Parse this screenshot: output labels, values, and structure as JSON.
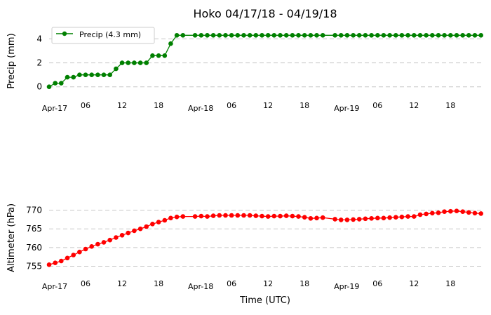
{
  "title": "Hoko 04/17/18 - 04/19/18",
  "chart_data": [
    {
      "type": "line",
      "ylabel": "Precip (mm)",
      "xlabel": "",
      "x_unit": "hours since 2018-04-17 00:00 UTC",
      "xlim": [
        0,
        71.5
      ],
      "ylim": [
        -0.6,
        4.9
      ],
      "yticks": [
        0,
        2,
        4
      ],
      "xticks": [
        {
          "x": 0,
          "label": "Apr-17"
        },
        {
          "x": 6,
          "label": "06"
        },
        {
          "x": 12,
          "label": "12"
        },
        {
          "x": 18,
          "label": "18"
        },
        {
          "x": 24,
          "label": "Apr-18"
        },
        {
          "x": 30,
          "label": "06"
        },
        {
          "x": 36,
          "label": "12"
        },
        {
          "x": 42,
          "label": "18"
        },
        {
          "x": 48,
          "label": "Apr-19"
        },
        {
          "x": 54,
          "label": "06"
        },
        {
          "x": 60,
          "label": "12"
        },
        {
          "x": 66,
          "label": "18"
        }
      ],
      "grid": "horizontal dashed",
      "legend": "upper-left",
      "color": "#008000",
      "series": [
        {
          "name": "Precip (4.3 mm)",
          "x": [
            0,
            1,
            2,
            3,
            4,
            5,
            6,
            7,
            8,
            9,
            10,
            11,
            12,
            13,
            14,
            15,
            16,
            17,
            18,
            19,
            20,
            21,
            22,
            23,
            24,
            25,
            26,
            27,
            28,
            29,
            30,
            31,
            32,
            33,
            34,
            35,
            36,
            37,
            38,
            39,
            40,
            41,
            42,
            43,
            44,
            45,
            46,
            47,
            48,
            49,
            50,
            51,
            52,
            53,
            54,
            55,
            56,
            57,
            58,
            59,
            60,
            61,
            62,
            63,
            64,
            65,
            66,
            67,
            68,
            69,
            70,
            71
          ],
          "values": [
            0,
            0.3,
            0.3,
            0.8,
            0.8,
            1.0,
            1.0,
            1.0,
            1.0,
            1.0,
            1.0,
            1.5,
            2.0,
            2.0,
            2.0,
            2.0,
            2.0,
            2.6,
            2.6,
            2.6,
            3.6,
            4.3,
            4.3,
            4.3,
            4.3,
            4.3,
            4.3,
            4.3,
            4.3,
            4.3,
            4.3,
            4.3,
            4.3,
            4.3,
            4.3,
            4.3,
            4.3,
            4.3,
            4.3,
            4.3,
            4.3,
            4.3,
            4.3,
            4.3,
            4.3,
            4.3,
            4.3,
            4.3,
            4.3,
            4.3,
            4.3,
            4.3,
            4.3,
            4.3,
            4.3,
            4.3,
            4.3,
            4.3,
            4.3,
            4.3,
            4.3,
            4.3,
            4.3,
            4.3,
            4.3,
            4.3,
            4.3,
            4.3,
            4.3,
            4.3,
            4.3,
            4.3
          ],
          "marker_x": [
            0,
            1,
            2,
            3,
            4,
            5,
            6,
            7,
            8,
            9,
            10,
            11,
            12,
            13,
            14,
            15,
            16,
            17,
            18,
            19,
            20,
            21,
            22,
            24,
            25,
            26,
            27,
            28,
            29,
            30,
            31,
            32,
            33,
            34,
            35,
            36,
            37,
            38,
            39,
            40,
            41,
            42,
            43,
            44,
            45,
            47,
            48,
            49,
            50,
            51,
            52,
            53,
            54,
            55,
            56,
            57,
            58,
            59,
            60,
            61,
            62,
            63,
            64,
            65,
            66,
            67,
            68,
            69,
            70,
            71
          ]
        }
      ]
    },
    {
      "type": "line",
      "ylabel": "Altimeter (hPa)",
      "xlabel": "Time (UTC)",
      "x_unit": "hours since 2018-04-17 00:00 UTC",
      "xlim": [
        0,
        71.5
      ],
      "ylim": [
        753.4,
        771.8
      ],
      "yticks": [
        755,
        760,
        765,
        770
      ],
      "xticks": [
        {
          "x": 0,
          "label": "Apr-17"
        },
        {
          "x": 6,
          "label": "06"
        },
        {
          "x": 12,
          "label": "12"
        },
        {
          "x": 18,
          "label": "18"
        },
        {
          "x": 24,
          "label": "Apr-18"
        },
        {
          "x": 30,
          "label": "06"
        },
        {
          "x": 36,
          "label": "12"
        },
        {
          "x": 42,
          "label": "18"
        },
        {
          "x": 48,
          "label": "Apr-19"
        },
        {
          "x": 54,
          "label": "06"
        },
        {
          "x": 60,
          "label": "12"
        },
        {
          "x": 66,
          "label": "18"
        }
      ],
      "grid": "horizontal dashed",
      "color": "#ff0000",
      "series": [
        {
          "name": "Altimeter",
          "x": [
            0,
            1,
            2,
            3,
            4,
            5,
            6,
            7,
            8,
            9,
            10,
            11,
            12,
            13,
            14,
            15,
            16,
            17,
            18,
            19,
            20,
            21,
            22,
            24,
            25,
            26,
            27,
            28,
            29,
            30,
            31,
            32,
            33,
            34,
            35,
            36,
            37,
            38,
            39,
            40,
            41,
            42,
            43,
            44,
            45,
            47,
            48,
            49,
            50,
            51,
            52,
            53,
            54,
            55,
            56,
            57,
            58,
            59,
            60,
            61,
            62,
            63,
            64,
            65,
            66,
            67,
            68,
            69,
            70,
            71
          ],
          "values": [
            755.4,
            755.9,
            756.4,
            757.2,
            758.0,
            758.8,
            759.6,
            760.3,
            760.9,
            761.4,
            762.0,
            762.7,
            763.3,
            763.9,
            764.5,
            765.0,
            765.6,
            766.3,
            766.8,
            767.3,
            767.9,
            768.2,
            768.3,
            768.3,
            768.4,
            768.3,
            768.5,
            768.6,
            768.6,
            768.6,
            768.6,
            768.6,
            768.6,
            768.5,
            768.4,
            768.3,
            768.4,
            768.4,
            768.5,
            768.4,
            768.3,
            768.1,
            767.8,
            767.9,
            768.0,
            767.6,
            767.4,
            767.4,
            767.5,
            767.6,
            767.7,
            767.8,
            767.9,
            767.9,
            768.0,
            768.1,
            768.2,
            768.3,
            768.3,
            768.8,
            769.0,
            769.2,
            769.3,
            769.6,
            769.7,
            769.8,
            769.6,
            769.4,
            769.2,
            769.1
          ]
        }
      ]
    }
  ]
}
